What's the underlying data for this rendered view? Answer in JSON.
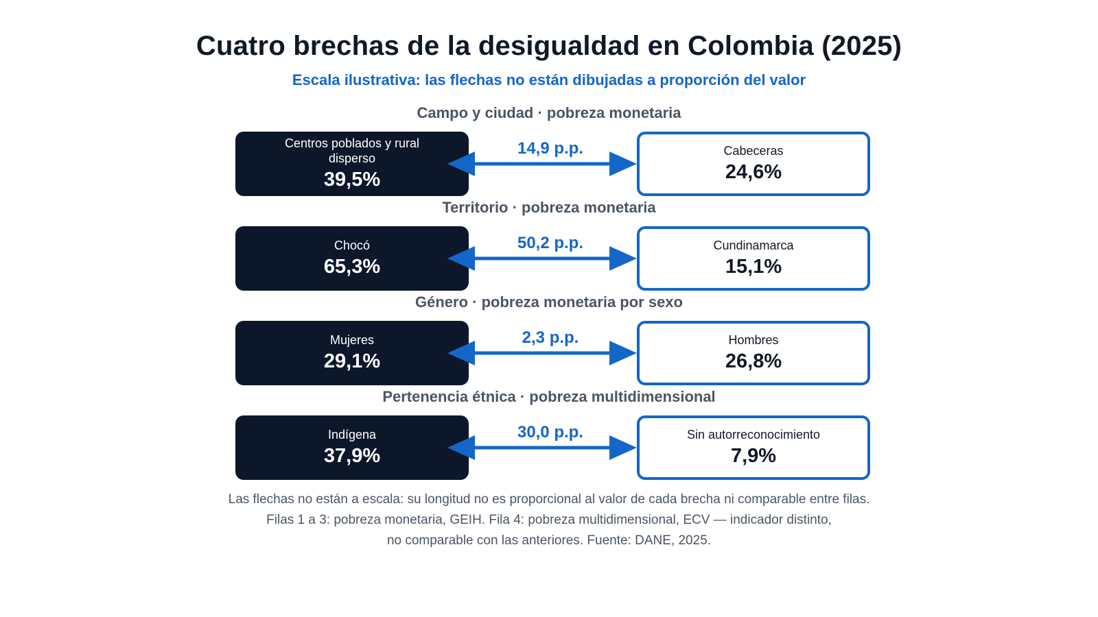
{
  "title": "Cuatro brechas de la desigualdad en Colombia (2025)",
  "subtitle": "Escala ilustrativa: las flechas no están dibujadas a proporción del valor",
  "rows": [
    {
      "label": "Campo y ciudad · pobreza monetaria",
      "left": {
        "name": "Centros poblados y rural disperso",
        "value": "39,5%"
      },
      "gap": "14,9 p.p.",
      "right": {
        "name": "Cabeceras",
        "value": "24,6%"
      }
    },
    {
      "label": "Territorio · pobreza monetaria",
      "left": {
        "name": "Chocó",
        "value": "65,3%"
      },
      "gap": "50,2 p.p.",
      "right": {
        "name": "Cundinamarca",
        "value": "15,1%"
      }
    },
    {
      "label": "Género · pobreza monetaria por sexo",
      "left": {
        "name": "Mujeres",
        "value": "29,1%"
      },
      "gap": "2,3 p.p.",
      "right": {
        "name": "Hombres",
        "value": "26,8%"
      }
    },
    {
      "label": "Pertenencia étnica · pobreza multidimensional",
      "left": {
        "name": "Indígena",
        "value": "37,9%"
      },
      "gap": "30,0 p.p.",
      "right": {
        "name": "Sin autorreconocimiento",
        "value": "7,9%"
      }
    }
  ],
  "notes": [
    "Las flechas no están a escala: su longitud no es proporcional al valor de cada brecha ni comparable entre filas.",
    "Filas 1 a 3: pobreza monetaria, GEIH. Fila 4: pobreza multidimensional, ECV — indicador distinto,",
    "no comparable con las anteriores. Fuente: DANE, 2025."
  ],
  "colors": {
    "dark_box": "#0d172a",
    "accent_blue": "#1466c8",
    "label_gray": "#4b5563"
  }
}
